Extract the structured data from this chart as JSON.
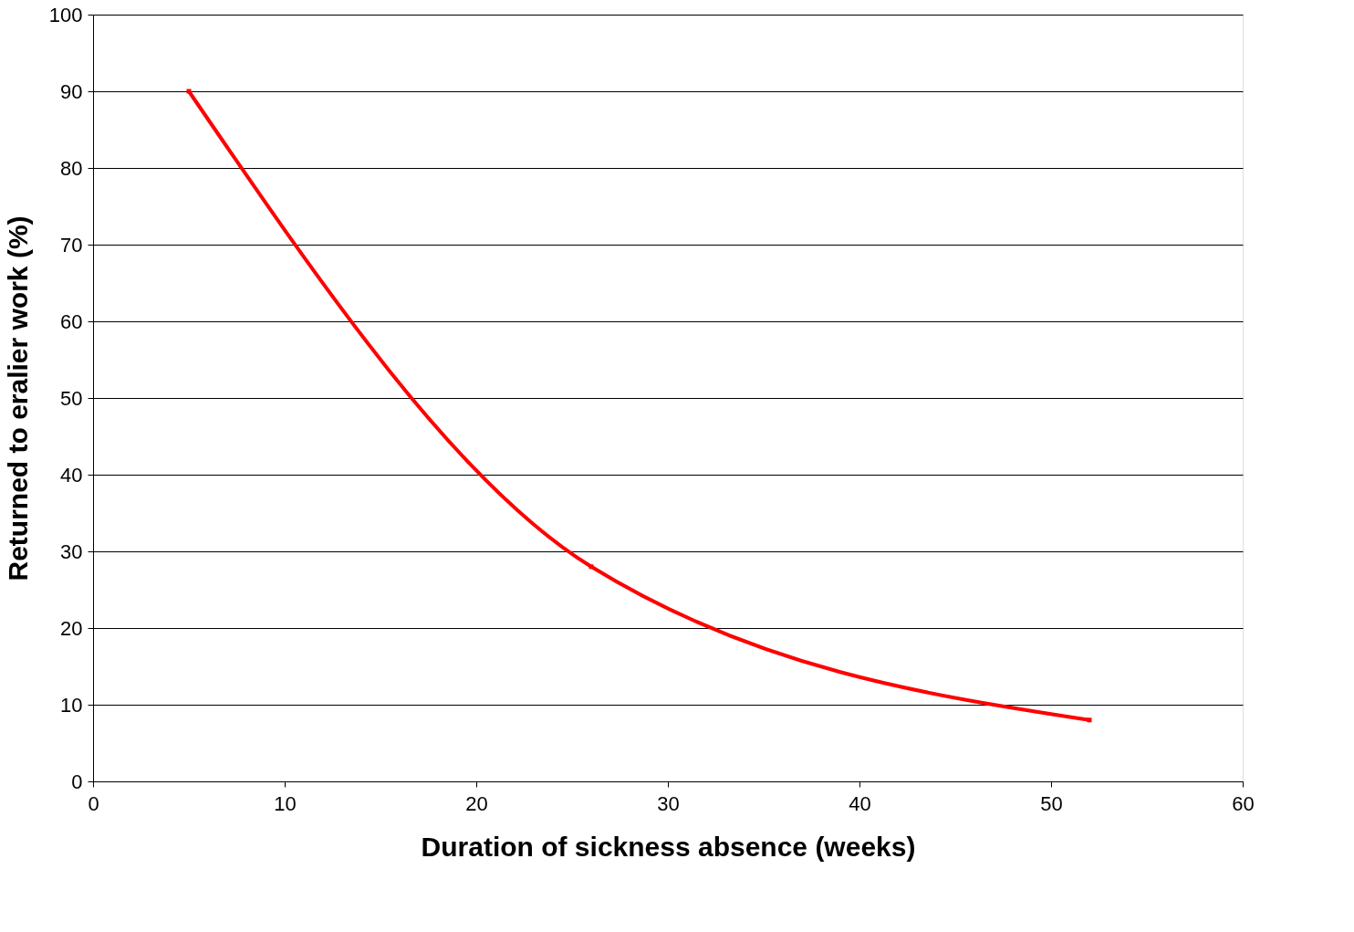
{
  "chart_data": {
    "type": "line",
    "xlabel": "Duration of sickness absence (weeks)",
    "ylabel": "Returned to eralier work (%)",
    "x": [
      5,
      26,
      52
    ],
    "series": [
      {
        "color": "#ff0000",
        "values": [
          90,
          28,
          8
        ]
      }
    ],
    "xlim": [
      0,
      60
    ],
    "xticks": [
      0,
      10,
      20,
      30,
      40,
      50,
      60
    ],
    "ylim": [
      0,
      100
    ],
    "yticks": [
      0,
      10,
      20,
      30,
      40,
      50,
      60,
      70,
      80,
      90,
      100
    ],
    "grid": "y",
    "marker": "square",
    "line_style": "solid"
  }
}
